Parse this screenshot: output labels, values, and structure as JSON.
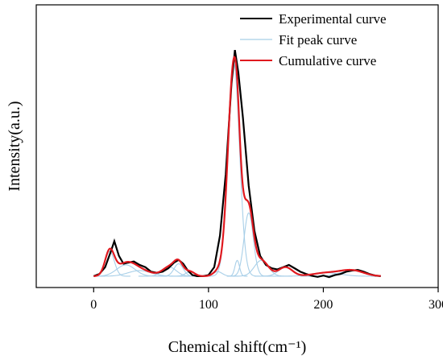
{
  "chart_data": {
    "type": "line",
    "xlabel": "Chemical shift(cm⁻¹)",
    "ylabel": "Intensity(a.u.)",
    "xlim": [
      -50,
      300
    ],
    "ylim": [
      -5,
      120
    ],
    "x_ticks": [
      0,
      100,
      200,
      300
    ],
    "y_ticks_shown": false,
    "grid": false,
    "legend_position": "top-right",
    "colors": {
      "experimental": "#000000",
      "fit": "#a8cfe8",
      "cumulative": "#e0191f"
    },
    "series": [
      {
        "name": "Experimental curve",
        "x": [
          0,
          5,
          10,
          15,
          18,
          22,
          26,
          30,
          35,
          40,
          45,
          50,
          55,
          60,
          65,
          70,
          74,
          78,
          82,
          86,
          90,
          95,
          100,
          105,
          110,
          115,
          120,
          123,
          126,
          130,
          135,
          140,
          145,
          150,
          155,
          160,
          165,
          170,
          175,
          180,
          185,
          190,
          195,
          200,
          205,
          210,
          215,
          220,
          225,
          230,
          235,
          240,
          245,
          250
        ],
        "y": [
          0,
          1,
          4,
          11,
          15.5,
          9,
          5.5,
          6,
          6.5,
          5,
          4,
          2,
          1.5,
          2,
          3.5,
          6,
          7.2,
          5.5,
          2.5,
          0.5,
          0,
          0,
          0.5,
          4,
          18,
          45,
          85,
          100,
          90,
          70,
          40,
          20,
          9,
          5,
          3.5,
          3,
          4,
          5,
          3.5,
          2,
          1,
          0.2,
          -0.3,
          0.3,
          -0.4,
          0.5,
          1,
          2,
          2.5,
          2.8,
          2,
          1,
          0.3,
          0
        ]
      },
      {
        "name": "Fit peak curve",
        "peaks": [
          {
            "center": 14,
            "height": 11,
            "width": 4
          },
          {
            "center": 28,
            "height": 5,
            "width": 8
          },
          {
            "center": 40,
            "height": 2.5,
            "width": 10
          },
          {
            "center": 66,
            "height": 4,
            "width": 6
          },
          {
            "center": 74,
            "height": 5.5,
            "width": 4
          },
          {
            "center": 84,
            "height": 2,
            "width": 4
          },
          {
            "center": 108,
            "height": 2,
            "width": 4
          },
          {
            "center": 122,
            "height": 94,
            "width": 5
          },
          {
            "center": 125,
            "height": 7,
            "width": 2
          },
          {
            "center": 135,
            "height": 28,
            "width": 4
          },
          {
            "center": 146,
            "height": 7,
            "width": 6
          },
          {
            "center": 167,
            "height": 4,
            "width": 6
          },
          {
            "center": 203,
            "height": 1.5,
            "width": 12
          },
          {
            "center": 225,
            "height": 2.5,
            "width": 10
          }
        ]
      },
      {
        "name": "Cumulative curve",
        "description_only": false
      }
    ]
  }
}
